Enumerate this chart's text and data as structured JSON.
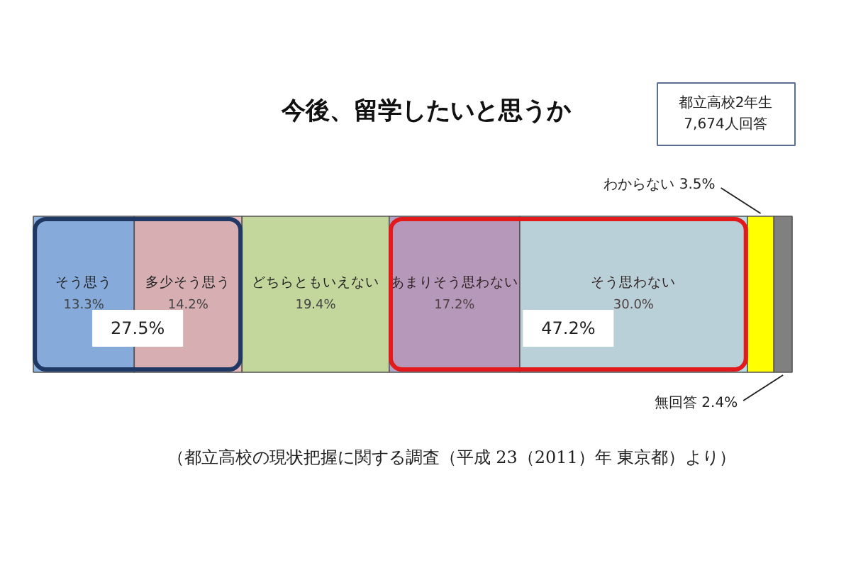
{
  "chart_data": {
    "type": "bar",
    "orientation": "horizontal",
    "stacked": true,
    "title": "今後、留学したいと思うか",
    "categories": [
      null
    ],
    "series": [
      {
        "name": "そう思う",
        "color": "#8eb4e3",
        "values": [
          13.3
        ],
        "value_labels": [
          "13.3%"
        ]
      },
      {
        "name": "多少そう思う",
        "color": "#e6b9b8",
        "values": [
          14.2
        ],
        "value_labels": [
          "14.2%"
        ]
      },
      {
        "name": "どちらともいえない",
        "color": "#c3d69b",
        "values": [
          19.4
        ],
        "value_labels": [
          "19.4%"
        ]
      },
      {
        "name": "あまりそう思わない",
        "color": "#b3a2c7",
        "values": [
          17.2
        ],
        "value_labels": [
          "17.2%"
        ]
      },
      {
        "name": "そう思わない",
        "color": "#b7dee8",
        "values": [
          30.0
        ],
        "value_labels": [
          "30.0%"
        ]
      },
      {
        "name": "わからない",
        "color": "#ffff00",
        "values": [
          3.5
        ],
        "value_labels": [
          "3.5%"
        ]
      },
      {
        "name": "無回答",
        "color": "#808080",
        "values": [
          2.4
        ],
        "value_labels": [
          "2.4%"
        ]
      }
    ],
    "bands": [
      {
        "axis": "x",
        "from": 0,
        "to": 27.5,
        "label": "27.5%",
        "color": "#1f3864"
      },
      {
        "axis": "x",
        "from": 46.9,
        "to": 94.1,
        "label": "47.2%",
        "color": "#e31a1c"
      }
    ],
    "annotations": [
      "都立高校2年生\n7,674人回答",
      "（都立高校の現状把握に関する調査（平成 23（2011）年 東京都）より）"
    ],
    "legend": false,
    "grid": false
  }
}
